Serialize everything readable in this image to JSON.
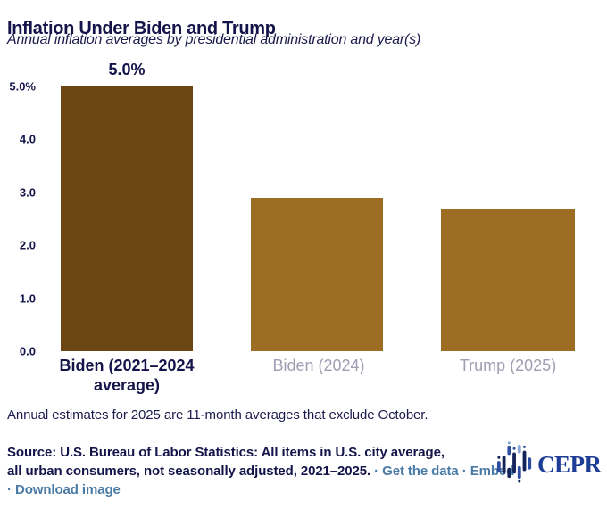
{
  "header": {
    "title": "Inflation Under Biden and Trump",
    "subtitle": "Annual inflation averages by presidential administration and year(s)"
  },
  "chart_data": {
    "type": "bar",
    "categories": [
      "Biden (2021–2024\naverage)",
      "Biden (2024)",
      "Trump (2025)"
    ],
    "values": [
      5.0,
      2.9,
      2.7
    ],
    "data_labels": [
      "5.0%",
      "",
      ""
    ],
    "ylabel": "",
    "xlabel": "",
    "ylim": [
      0,
      5
    ],
    "yticks": [
      "0.0",
      "1.0",
      "2.0",
      "3.0",
      "4.0",
      "5.0%"
    ],
    "grid": false,
    "legend": false,
    "highlight_index": 0,
    "colors": {
      "highlight": "#6b4613",
      "default": "#9c6e23"
    }
  },
  "footnote": "Annual estimates for 2025 are 11-month averages that exclude October.",
  "source": {
    "bold_text": "Source: U.S. Bureau of Labor Statistics: All items in U.S. city average,\nall urban consumers, not seasonally adjusted, 2021–2025.",
    "separator": "·",
    "links": [
      "Get the data",
      "Embed",
      "Download image"
    ],
    "link_color": "#4a7ba6"
  },
  "logo": {
    "text": "CEPR",
    "icon": "cepr-bars-mark",
    "text_color": "#1d3d96"
  },
  "colors": {
    "background": "#ffffff",
    "text_navy": "#14144a",
    "muted_label": "#a19db2"
  }
}
